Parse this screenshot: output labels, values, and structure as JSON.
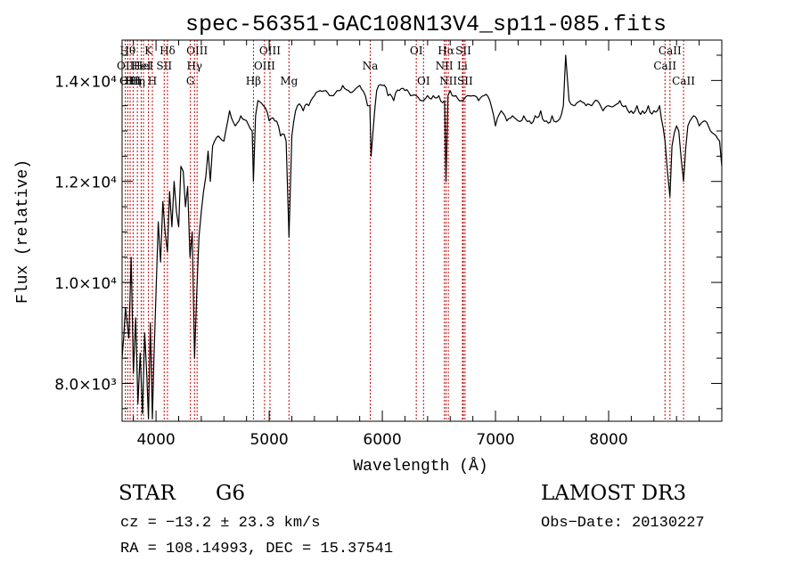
{
  "chart_data": {
    "type": "line",
    "title": "spec-56351-GAC108N13V4_sp11-085.fits",
    "xlabel": "Wavelength (Å)",
    "ylabel": "Flux (relative)",
    "xlim": [
      3700,
      9000
    ],
    "ylim": [
      7250,
      14800
    ],
    "x_ticks": [
      4000,
      5000,
      6000,
      7000,
      8000
    ],
    "x_tick_labels": [
      "4000",
      "5000",
      "6000",
      "7000",
      "8000"
    ],
    "y_ticks": [
      8000,
      10000,
      12000,
      14000
    ],
    "y_tick_labels": [
      "8.0×10³",
      "1.0×10⁴",
      "1.2×10⁴",
      "1.4×10⁴"
    ],
    "series": [
      {
        "color": "#000000",
        "x": [
          3700,
          3730,
          3760,
          3780,
          3800,
          3820,
          3840,
          3860,
          3880,
          3900,
          3920,
          3933,
          3950,
          3968,
          3980,
          4000,
          4020,
          4040,
          4060,
          4080,
          4101,
          4120,
          4140,
          4160,
          4180,
          4200,
          4220,
          4240,
          4260,
          4280,
          4300,
          4320,
          4340,
          4360,
          4380,
          4400,
          4420,
          4440,
          4460,
          4480,
          4500,
          4550,
          4600,
          4650,
          4700,
          4750,
          4800,
          4850,
          4861,
          4880,
          4900,
          4950,
          5000,
          5050,
          5100,
          5150,
          5175,
          5200,
          5250,
          5300,
          5350,
          5400,
          5450,
          5500,
          5550,
          5600,
          5650,
          5700,
          5750,
          5800,
          5850,
          5890,
          5900,
          5950,
          6000,
          6050,
          6100,
          6150,
          6200,
          6250,
          6300,
          6350,
          6400,
          6450,
          6500,
          6550,
          6563,
          6580,
          6600,
          6650,
          6700,
          6750,
          6800,
          6850,
          6900,
          6950,
          7000,
          7050,
          7100,
          7150,
          7200,
          7250,
          7300,
          7350,
          7400,
          7450,
          7500,
          7550,
          7600,
          7620,
          7650,
          7700,
          7750,
          7800,
          7850,
          7900,
          7950,
          8000,
          8050,
          8100,
          8150,
          8200,
          8250,
          8300,
          8350,
          8400,
          8450,
          8498,
          8520,
          8542,
          8560,
          8600,
          8620,
          8662,
          8700,
          8750,
          8800,
          8850,
          8900,
          8950,
          8980,
          9000
        ],
        "y": [
          8500,
          9500,
          8900,
          10500,
          8200,
          9300,
          7600,
          8600,
          7400,
          9000,
          8100,
          7300,
          9200,
          7300,
          8400,
          9800,
          11200,
          10400,
          11600,
          11000,
          10600,
          11800,
          11100,
          12000,
          11400,
          11100,
          12300,
          12200,
          11500,
          11900,
          10500,
          11000,
          8500,
          9800,
          10900,
          11400,
          11800,
          12100,
          12600,
          12000,
          12700,
          12900,
          12800,
          13400,
          13100,
          13300,
          13200,
          13000,
          12000,
          13300,
          13600,
          13500,
          13200,
          13200,
          12900,
          12800,
          10900,
          12900,
          13500,
          13400,
          13500,
          13700,
          13800,
          13800,
          13700,
          13800,
          13900,
          13800,
          13800,
          13900,
          13700,
          13500,
          12500,
          13800,
          13900,
          13700,
          13600,
          13800,
          13800,
          13700,
          13700,
          13600,
          13700,
          13700,
          13700,
          13600,
          12000,
          13700,
          13800,
          13700,
          13600,
          13700,
          13700,
          13600,
          13700,
          13600,
          13100,
          13400,
          13200,
          13300,
          13200,
          13300,
          13200,
          13300,
          13400,
          13200,
          13300,
          13200,
          13500,
          14500,
          13600,
          13500,
          13600,
          13500,
          13500,
          13600,
          13400,
          13500,
          13500,
          13600,
          13500,
          13400,
          13500,
          13400,
          13500,
          13400,
          13500,
          12800,
          12200,
          11700,
          12700,
          13100,
          13000,
          12000,
          13100,
          13300,
          13100,
          13200,
          13000,
          12900,
          12800,
          12300
        ]
      }
    ],
    "lines": [
      {
        "x": 3729,
        "label": "OII",
        "row": 2
      },
      {
        "x": 3750,
        "label": "Hθ",
        "row": 1
      },
      {
        "x": 3771,
        "label": "OIII",
        "row": 3
      },
      {
        "x": 3798,
        "label": "Hη",
        "row": 3
      },
      {
        "x": 3835,
        "label": "Hη",
        "row": 3
      },
      {
        "x": 3869,
        "label": "HeI",
        "row": 2
      },
      {
        "x": 3889,
        "label": "HeI",
        "row": 2
      },
      {
        "x": 3933,
        "label": "K",
        "row": 1
      },
      {
        "x": 3968,
        "label": "H",
        "row": 3
      },
      {
        "x": 4072,
        "label": "SII",
        "row": 2
      },
      {
        "x": 4101,
        "label": "Hδ",
        "row": 1
      },
      {
        "x": 4304,
        "label": "G",
        "row": 3
      },
      {
        "x": 4340,
        "label": "Hγ",
        "row": 2
      },
      {
        "x": 4363,
        "label": "OIII",
        "row": 1
      },
      {
        "x": 4861,
        "label": "Hβ",
        "row": 3
      },
      {
        "x": 4959,
        "label": "OIII",
        "row": 2
      },
      {
        "x": 5007,
        "label": "OIII",
        "row": 1
      },
      {
        "x": 5175,
        "label": "Mg",
        "row": 3
      },
      {
        "x": 5893,
        "label": "Na",
        "row": 2
      },
      {
        "x": 6300,
        "label": "OI",
        "row": 1
      },
      {
        "x": 6364,
        "label": "OI",
        "row": 3
      },
      {
        "x": 6548,
        "label": "NII",
        "row": 2
      },
      {
        "x": 6563,
        "label": "Hα",
        "row": 1
      },
      {
        "x": 6583,
        "label": "NII",
        "row": 3
      },
      {
        "x": 6708,
        "label": "Li",
        "row": 2
      },
      {
        "x": 6716,
        "label": "SII",
        "row": 1
      },
      {
        "x": 6731,
        "label": "SII",
        "row": 3
      },
      {
        "x": 8498,
        "label": "CaII",
        "row": 2
      },
      {
        "x": 8542,
        "label": "CaII",
        "row": 1
      },
      {
        "x": 8662,
        "label": "CaII",
        "row": 3
      }
    ]
  },
  "info": {
    "class_label": "STAR",
    "subclass": "G6",
    "survey": "LAMOST DR3",
    "cz": "cz = −13.2 ± 23.3 km/s",
    "obs_date": "Obs−Date: 20130227",
    "coords": "RA = 108.14993, DEC =  15.37541"
  }
}
